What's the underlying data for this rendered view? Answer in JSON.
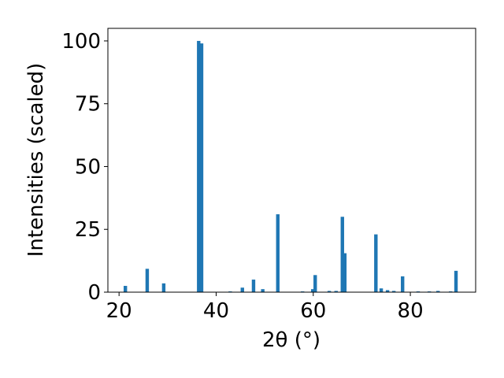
{
  "chart_data": {
    "type": "bar",
    "xlabel": "2θ (°)",
    "ylabel": "Intensities (scaled)",
    "x": [
      21.3,
      25.8,
      29.2,
      36.4,
      37.0,
      42.9,
      45.4,
      47.7,
      49.6,
      52.7,
      57.8,
      59.9,
      60.4,
      63.3,
      64.7,
      66.0,
      66.5,
      72.9,
      74.0,
      75.3,
      76.6,
      78.4,
      81.6,
      83.9,
      85.7,
      88.3,
      89.4
    ],
    "values": [
      2.5,
      9.3,
      3.5,
      100,
      99,
      0.3,
      1.8,
      5,
      1.2,
      31,
      0.3,
      1.2,
      6.8,
      0.5,
      0.5,
      30,
      15.5,
      23,
      1.5,
      0.8,
      0.5,
      6.3,
      0.3,
      0.3,
      0.5,
      0.3,
      8.5
    ],
    "color": "#1f77b4",
    "xlim": [
      17.7,
      93.45
    ],
    "xticks": [
      20,
      40,
      60,
      80
    ],
    "ylim": [
      0,
      105
    ],
    "yticks": [
      0,
      25,
      50,
      75,
      100
    ]
  }
}
